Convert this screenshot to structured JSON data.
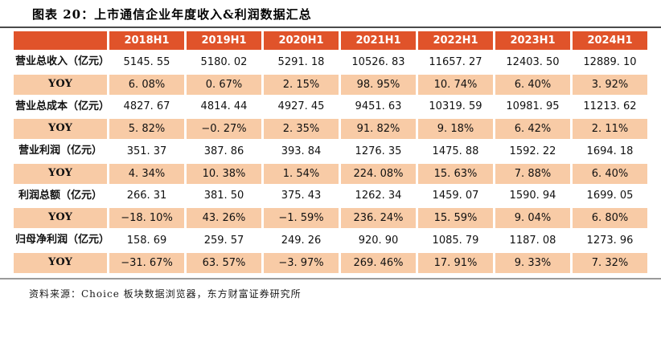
{
  "title": "图表 20：上市通信企业年度收入&利润数据汇总",
  "source": "资料来源：Choice 板块数据浏览器，东方财富证券研究所",
  "colors": {
    "header_bg": "#e0532a",
    "yoy_bg": "#f8cba6",
    "header_text": "#ffffff",
    "title_rule": "#4a4a4a",
    "source_rule": "#9a9a9a"
  },
  "chart_data": {
    "type": "table",
    "columns": [
      "",
      "2018H1",
      "2019H1",
      "2020H1",
      "2021H1",
      "2022H1",
      "2023H1",
      "2024H1"
    ],
    "rows": [
      {
        "label": "营业总收入（亿元）",
        "kind": "metric",
        "values": [
          "5145. 55",
          "5180. 02",
          "5291. 18",
          "10526. 83",
          "11657. 27",
          "12403. 50",
          "12889. 10"
        ]
      },
      {
        "label": "YOY",
        "kind": "yoy",
        "values": [
          "6. 08%",
          "0. 67%",
          "2. 15%",
          "98. 95%",
          "10. 74%",
          "6. 40%",
          "3. 92%"
        ]
      },
      {
        "label": "营业总成本（亿元）",
        "kind": "metric",
        "values": [
          "4827. 67",
          "4814. 44",
          "4927. 45",
          "9451. 63",
          "10319. 59",
          "10981. 95",
          "11213. 62"
        ]
      },
      {
        "label": "YOY",
        "kind": "yoy",
        "values": [
          "5. 82%",
          "−0. 27%",
          "2. 35%",
          "91. 82%",
          "9. 18%",
          "6. 42%",
          "2. 11%"
        ]
      },
      {
        "label": "营业利润（亿元）",
        "kind": "metric",
        "values": [
          "351. 37",
          "387. 86",
          "393. 84",
          "1276. 35",
          "1475. 88",
          "1592. 22",
          "1694. 18"
        ]
      },
      {
        "label": "YOY",
        "kind": "yoy",
        "values": [
          "4. 34%",
          "10. 38%",
          "1. 54%",
          "224. 08%",
          "15. 63%",
          "7. 88%",
          "6. 40%"
        ]
      },
      {
        "label": "利润总额（亿元）",
        "kind": "metric",
        "values": [
          "266. 31",
          "381. 50",
          "375. 43",
          "1262. 34",
          "1459. 07",
          "1590. 94",
          "1699. 05"
        ]
      },
      {
        "label": "YOY",
        "kind": "yoy",
        "values": [
          "−18. 10%",
          "43. 26%",
          "−1. 59%",
          "236. 24%",
          "15. 59%",
          "9. 04%",
          "6. 80%"
        ]
      },
      {
        "label": "归母净利润（亿元）",
        "kind": "metric",
        "values": [
          "158. 69",
          "259. 57",
          "249. 26",
          "920. 90",
          "1085. 79",
          "1187. 08",
          "1273. 96"
        ]
      },
      {
        "label": "YOY",
        "kind": "yoy",
        "values": [
          "−31. 67%",
          "63. 57%",
          "−3. 97%",
          "269. 46%",
          "17. 91%",
          "9. 33%",
          "7. 32%"
        ]
      }
    ]
  }
}
